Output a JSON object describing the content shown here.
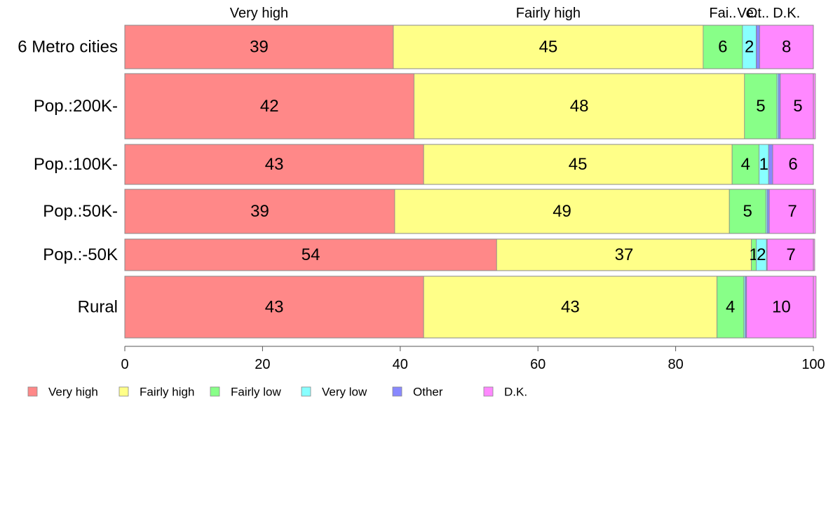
{
  "chart_data": {
    "type": "bar",
    "orientation": "horizontal",
    "stacked": true,
    "categories": [
      "6 Metro cities",
      "Pop.:200K-",
      "Pop.:100K-",
      "Pop.:50K-",
      "Pop.:-50K",
      "Rural"
    ],
    "series": [
      {
        "name": "Very high",
        "color": "#ff8888",
        "values": [
          39,
          42,
          43.4,
          39.2,
          54,
          43.4
        ],
        "labels": [
          "39",
          "42",
          "43",
          "39",
          "54",
          "43"
        ]
      },
      {
        "name": "Fairly high",
        "color": "#ffff88",
        "values": [
          45,
          48,
          44.8,
          48.6,
          37,
          42.6
        ],
        "labels": [
          "45",
          "48",
          "45",
          "49",
          "37",
          "43"
        ]
      },
      {
        "name": "Fairly low",
        "color": "#88ff88",
        "values": [
          5.7,
          4.7,
          3.9,
          5.3,
          0.7,
          3.9
        ],
        "labels": [
          "6",
          "5",
          "4",
          "5",
          "1",
          "4"
        ]
      },
      {
        "name": "Very low",
        "color": "#88ffff",
        "values": [
          2,
          0.2,
          1.4,
          0.2,
          1.5,
          0.2
        ],
        "labels": [
          "2",
          "",
          "1",
          "",
          "2",
          ""
        ]
      },
      {
        "name": "Other",
        "color": "#8888ff",
        "values": [
          0.5,
          0.3,
          0.6,
          0.3,
          0.1,
          0.2
        ],
        "labels": [
          "",
          "",
          "",
          "",
          "",
          ""
        ]
      },
      {
        "name": "D.K.",
        "color": "#ff88ff",
        "values": [
          7.8,
          5.1,
          5.9,
          6.7,
          6.9,
          10.1
        ],
        "labels": [
          "8",
          "5",
          "6",
          "7",
          "7",
          "10"
        ]
      }
    ],
    "top_labels": [
      "Very high",
      "Fairly high",
      "Fai..",
      "Ve..",
      "Ot..",
      "D.K."
    ],
    "x_ticks": [
      0,
      20,
      40,
      60,
      80,
      100
    ],
    "xlim": [
      0,
      100
    ],
    "legend_position": "bottom-left",
    "grid": false
  }
}
